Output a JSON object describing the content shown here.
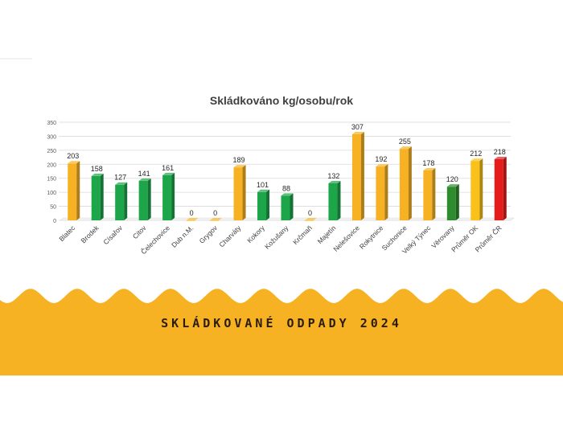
{
  "banner": {
    "title": "SKLÁDKOVANÉ ODPADY 2024",
    "color": "#F6B222"
  },
  "chart_data": {
    "type": "bar",
    "title": "Skládkováno kg/osobu/rok",
    "xlabel": "",
    "ylabel": "",
    "ylim": [
      0,
      350
    ],
    "yticks": [
      0,
      50,
      100,
      150,
      200,
      250,
      300,
      350
    ],
    "grid": true,
    "legend": "none",
    "bar_style": "3d",
    "categories": [
      "Blatec",
      "Brodek",
      "Císařov",
      "Citov",
      "Čelechovice",
      "Dub n.M.",
      "Grygov",
      "Charváty",
      "Kokory",
      "Kožušany",
      "Krčmaň",
      "Majetín",
      "Nelešovice",
      "Rokytnice",
      "Suchonice",
      "Velký Týnec",
      "Věrovany",
      "Průměr OK",
      "Průměr ČR"
    ],
    "values": [
      203,
      158,
      127,
      141,
      161,
      0,
      0,
      189,
      101,
      88,
      0,
      132,
      307,
      192,
      255,
      178,
      120,
      212,
      218
    ],
    "colors": [
      "#F6B222",
      "#1DA54A",
      "#1DA54A",
      "#1DA54A",
      "#1DA54A",
      "#F6B222",
      "#F6B222",
      "#F6B222",
      "#1DA54A",
      "#1DA54A",
      "#F6B222",
      "#1DA54A",
      "#F6B222",
      "#F6B222",
      "#F6B222",
      "#F6B222",
      "#2E8B2E",
      "#F9C11A",
      "#E41C1C"
    ]
  }
}
